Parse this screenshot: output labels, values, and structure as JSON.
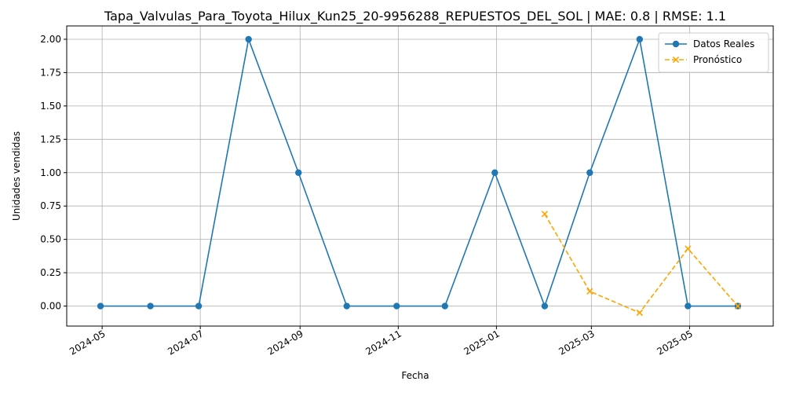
{
  "chart_data": {
    "type": "line",
    "title": "Tapa_Valvulas_Para_Toyota_Hilux_Kun25_20-9956288_REPUESTOS_DEL_SOL | MAE: 0.8 | RMSE: 1.1",
    "xlabel": "Fecha",
    "ylabel": "Unidades vendidas",
    "ylim": [
      -0.15,
      2.1
    ],
    "xlim": [
      "2024-04-09",
      "2025-06-22"
    ],
    "grid": true,
    "legend_position": "top-right",
    "x_ticks": [
      "2024-05",
      "2024-07",
      "2024-09",
      "2024-11",
      "2025-01",
      "2025-03",
      "2025-05"
    ],
    "y_ticks": [
      "0.00",
      "0.25",
      "0.50",
      "0.75",
      "1.00",
      "1.25",
      "1.50",
      "1.75",
      "2.00"
    ],
    "series": [
      {
        "name": "Datos Reales",
        "color": "#1f77b4",
        "style": "solid",
        "marker": "circle",
        "x": [
          "2024-04-30",
          "2024-05-31",
          "2024-06-30",
          "2024-07-31",
          "2024-08-31",
          "2024-09-30",
          "2024-10-31",
          "2024-11-30",
          "2024-12-31",
          "2025-01-31",
          "2025-02-28",
          "2025-03-31",
          "2025-04-30",
          "2025-05-31"
        ],
        "values": [
          0,
          0,
          0,
          2,
          1,
          0,
          0,
          0,
          1,
          0,
          1,
          2,
          0,
          0
        ]
      },
      {
        "name": "Pronóstico",
        "color": "#ffa500",
        "style": "dashed",
        "marker": "x",
        "x": [
          "2025-01-31",
          "2025-02-28",
          "2025-03-31",
          "2025-04-30",
          "2025-05-31"
        ],
        "values": [
          0.69,
          0.11,
          -0.05,
          0.43,
          0.0
        ]
      }
    ]
  }
}
